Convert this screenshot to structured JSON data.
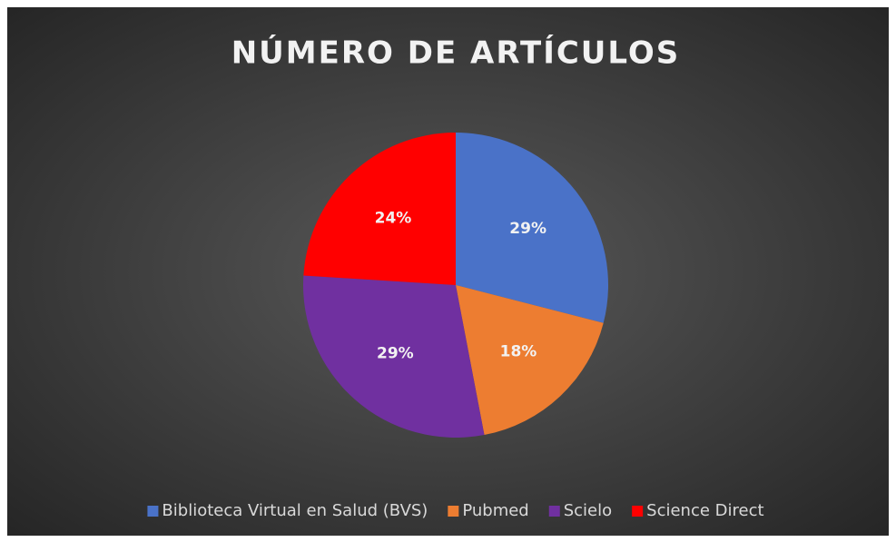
{
  "chart_data": {
    "type": "pie",
    "title": "NÚMERO DE ARTÍCULOS",
    "categories": [
      "Biblioteca Virtual en Salud (BVS)",
      "Pubmed",
      "Scielo",
      "Science Direct"
    ],
    "values": [
      29,
      18,
      29,
      24
    ],
    "value_labels": [
      "29%",
      "18%",
      "29%",
      "24%"
    ],
    "colors": [
      "#4a72c8",
      "#ed7d31",
      "#7030a0",
      "#ff0000"
    ],
    "legend": "bottom"
  }
}
